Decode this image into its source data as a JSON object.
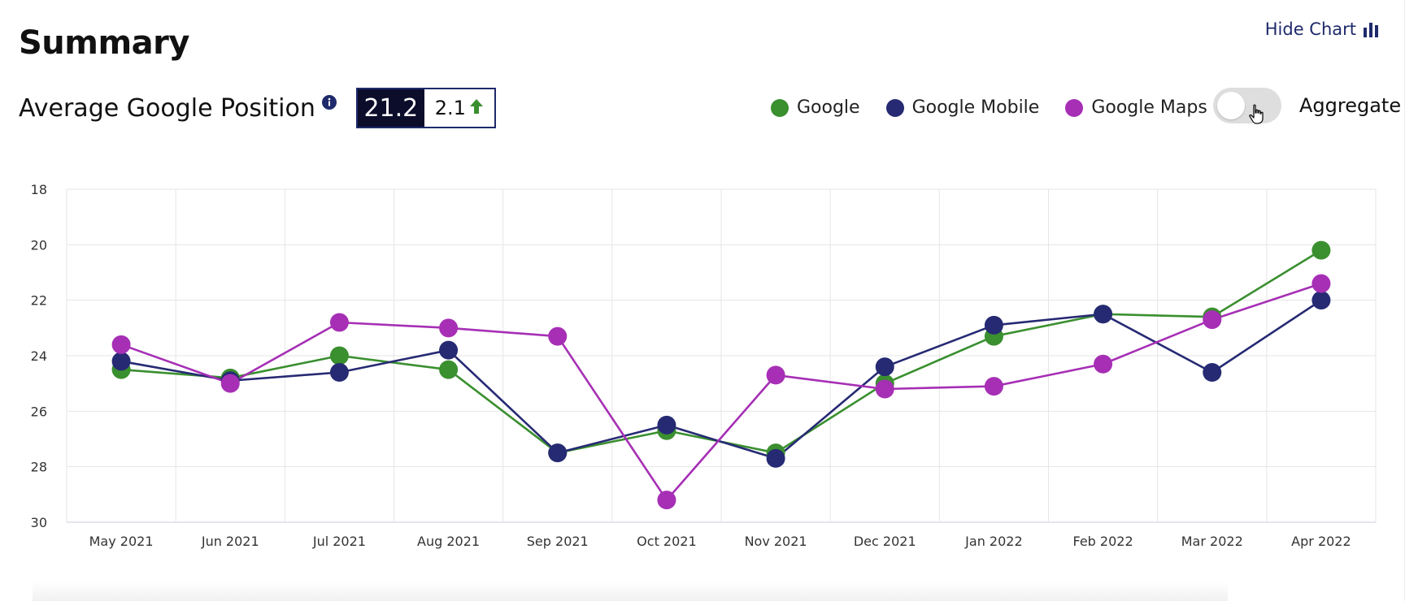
{
  "header": {
    "title": "Summary",
    "hide_chart_label": "Hide Chart"
  },
  "metric": {
    "label": "Average Google Position",
    "value": "21.2",
    "change": "2.1"
  },
  "legend": {
    "items": [
      {
        "label": "Google",
        "color": "#3a8f2f"
      },
      {
        "label": "Google Mobile",
        "color": "#262a73"
      },
      {
        "label": "Google Maps",
        "color": "#a62fb5"
      }
    ]
  },
  "toggle": {
    "label": "Aggregate",
    "on": false
  },
  "chart_data": {
    "type": "line",
    "title": "",
    "xlabel": "",
    "ylabel": "",
    "y_inverted": true,
    "ylim": [
      18,
      30
    ],
    "yticks": [
      18,
      20,
      22,
      24,
      26,
      28,
      30
    ],
    "grid": true,
    "categories": [
      "May 2021",
      "Jun 2021",
      "Jul 2021",
      "Aug 2021",
      "Sep 2021",
      "Oct 2021",
      "Nov 2021",
      "Dec 2021",
      "Jan 2022",
      "Feb 2022",
      "Mar 2022",
      "Apr 2022"
    ],
    "series": [
      {
        "name": "Google",
        "color": "#3a8f2f",
        "values": [
          24.5,
          24.8,
          24.0,
          24.5,
          27.5,
          26.7,
          27.5,
          25.0,
          23.3,
          22.5,
          22.6,
          20.2
        ]
      },
      {
        "name": "Google Mobile",
        "color": "#262a73",
        "values": [
          24.2,
          24.9,
          24.6,
          23.8,
          27.5,
          26.5,
          27.7,
          24.4,
          22.9,
          22.5,
          24.6,
          22.0
        ]
      },
      {
        "name": "Google Maps",
        "color": "#a62fb5",
        "values": [
          23.6,
          25.0,
          22.8,
          23.0,
          23.3,
          29.2,
          24.7,
          25.2,
          25.1,
          24.3,
          22.7,
          21.4
        ]
      }
    ]
  }
}
